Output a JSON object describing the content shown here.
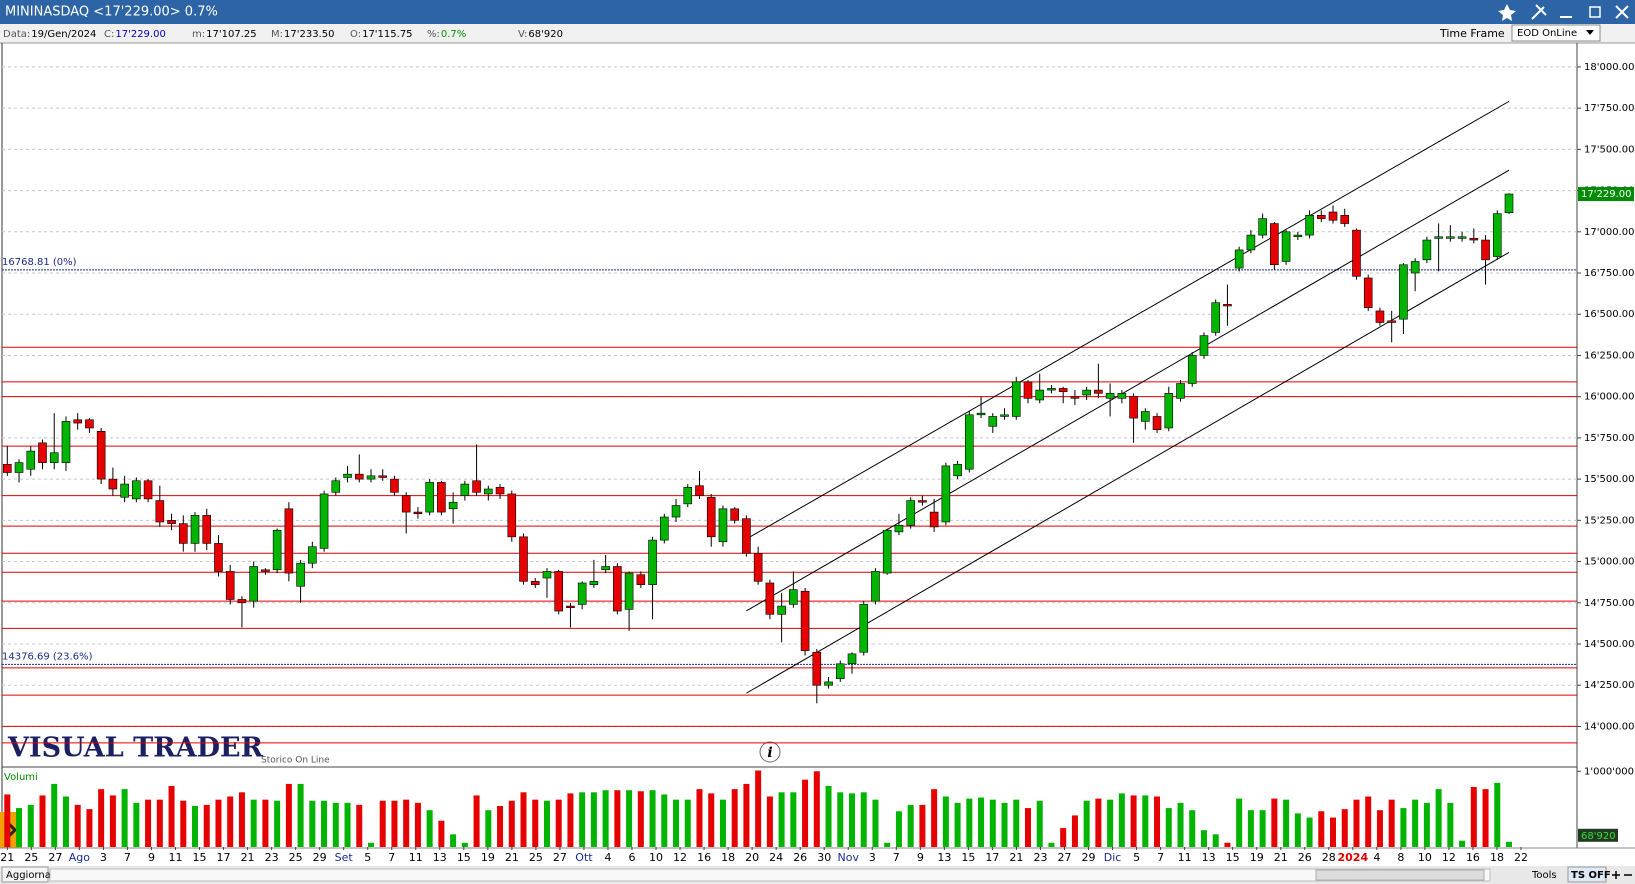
{
  "window": {
    "title": "MININASDAQ <17'229.00> 0.7%"
  },
  "info_bar": {
    "fields": [
      {
        "label": "Data:",
        "value": "19/Gen/2024"
      },
      {
        "label": "C:",
        "value": "17'229.00"
      },
      {
        "label": "m:",
        "value": "17'107.25"
      },
      {
        "label": "M:",
        "value": "17'233.50"
      },
      {
        "label": "O:",
        "value": "17'115.75"
      },
      {
        "label": "%:",
        "value": "0.7%"
      },
      {
        "label": "V:",
        "value": "68'920"
      }
    ],
    "time_frame_label": "Time Frame",
    "time_frame_value": "EOD OnLine"
  },
  "chart_data": {
    "type": "candlestick",
    "candles": [
      {
        "o": 15590,
        "h": 15700,
        "l": 15520,
        "c": 15540,
        "v": 694000
      },
      {
        "o": 15540,
        "h": 15620,
        "l": 15480,
        "c": 15600,
        "v": 514000
      },
      {
        "o": 15560,
        "h": 15700,
        "l": 15520,
        "c": 15670,
        "v": 556000
      },
      {
        "o": 15720,
        "h": 15740,
        "l": 15560,
        "c": 15600,
        "v": 681000
      },
      {
        "o": 15600,
        "h": 15900,
        "l": 15560,
        "c": 15660,
        "v": 833000
      },
      {
        "o": 15600,
        "h": 15880,
        "l": 15550,
        "c": 15850,
        "v": 667000
      },
      {
        "o": 15860,
        "h": 15900,
        "l": 15800,
        "c": 15840,
        "v": 556000
      },
      {
        "o": 15860,
        "h": 15870,
        "l": 15780,
        "c": 15810,
        "v": 500000
      },
      {
        "o": 15790,
        "h": 15810,
        "l": 15470,
        "c": 15500,
        "v": 764000
      },
      {
        "o": 15500,
        "h": 15570,
        "l": 15400,
        "c": 15440,
        "v": 681000
      },
      {
        "o": 15390,
        "h": 15520,
        "l": 15360,
        "c": 15470,
        "v": 764000
      },
      {
        "o": 15380,
        "h": 15510,
        "l": 15360,
        "c": 15490,
        "v": 583000
      },
      {
        "o": 15490,
        "h": 15500,
        "l": 15360,
        "c": 15380,
        "v": 625000
      },
      {
        "o": 15370,
        "h": 15460,
        "l": 15210,
        "c": 15240,
        "v": 625000
      },
      {
        "o": 15250,
        "h": 15290,
        "l": 15190,
        "c": 15230,
        "v": 806000
      },
      {
        "o": 15230,
        "h": 15280,
        "l": 15060,
        "c": 15110,
        "v": 611000
      },
      {
        "o": 15110,
        "h": 15300,
        "l": 15060,
        "c": 15280,
        "v": 542000
      },
      {
        "o": 15280,
        "h": 15320,
        "l": 15070,
        "c": 15110,
        "v": 556000
      },
      {
        "o": 15110,
        "h": 15160,
        "l": 14910,
        "c": 14940,
        "v": 625000
      },
      {
        "o": 14940,
        "h": 14980,
        "l": 14740,
        "c": 14770,
        "v": 667000
      },
      {
        "o": 14770,
        "h": 14790,
        "l": 14600,
        "c": 14750,
        "v": 722000
      },
      {
        "o": 14760,
        "h": 15000,
        "l": 14720,
        "c": 14970,
        "v": 625000
      },
      {
        "o": 14950,
        "h": 14960,
        "l": 14920,
        "c": 14940,
        "v": 625000
      },
      {
        "o": 14950,
        "h": 15200,
        "l": 14930,
        "c": 15190,
        "v": 611000
      },
      {
        "o": 15320,
        "h": 15360,
        "l": 14880,
        "c": 14930,
        "v": 833000
      },
      {
        "o": 14850,
        "h": 15010,
        "l": 14750,
        "c": 14990,
        "v": 833000
      },
      {
        "o": 14990,
        "h": 15120,
        "l": 14960,
        "c": 15090,
        "v": 611000
      },
      {
        "o": 15080,
        "h": 15430,
        "l": 15060,
        "c": 15410,
        "v": 611000
      },
      {
        "o": 15420,
        "h": 15510,
        "l": 15400,
        "c": 15490,
        "v": 583000
      },
      {
        "o": 15510,
        "h": 15580,
        "l": 15480,
        "c": 15530,
        "v": 583000
      },
      {
        "o": 15530,
        "h": 15650,
        "l": 15480,
        "c": 15500,
        "v": 556000
      },
      {
        "o": 15500,
        "h": 15560,
        "l": 15480,
        "c": 15520,
        "v": 56000
      },
      {
        "o": 15520,
        "h": 15560,
        "l": 15490,
        "c": 15510,
        "v": 611000
      },
      {
        "o": 15500,
        "h": 15520,
        "l": 15400,
        "c": 15420,
        "v": 611000
      },
      {
        "o": 15400,
        "h": 15420,
        "l": 15170,
        "c": 15300,
        "v": 625000
      },
      {
        "o": 15300,
        "h": 15330,
        "l": 15260,
        "c": 15290,
        "v": 583000
      },
      {
        "o": 15300,
        "h": 15500,
        "l": 15280,
        "c": 15480,
        "v": 486000
      },
      {
        "o": 15480,
        "h": 15490,
        "l": 15280,
        "c": 15300,
        "v": 347000
      },
      {
        "o": 15320,
        "h": 15420,
        "l": 15230,
        "c": 15360,
        "v": 167000
      },
      {
        "o": 15400,
        "h": 15490,
        "l": 15370,
        "c": 15470,
        "v": 56000
      },
      {
        "o": 15490,
        "h": 15710,
        "l": 15400,
        "c": 15420,
        "v": 681000
      },
      {
        "o": 15410,
        "h": 15460,
        "l": 15370,
        "c": 15440,
        "v": 486000
      },
      {
        "o": 15450,
        "h": 15470,
        "l": 15380,
        "c": 15410,
        "v": 542000
      },
      {
        "o": 15410,
        "h": 15430,
        "l": 15120,
        "c": 15150,
        "v": 611000
      },
      {
        "o": 15150,
        "h": 15170,
        "l": 14860,
        "c": 14880,
        "v": 722000
      },
      {
        "o": 14880,
        "h": 14900,
        "l": 14840,
        "c": 14860,
        "v": 625000
      },
      {
        "o": 14900,
        "h": 14960,
        "l": 14780,
        "c": 14940,
        "v": 611000
      },
      {
        "o": 14940,
        "h": 14950,
        "l": 14680,
        "c": 14700,
        "v": 625000
      },
      {
        "o": 14730,
        "h": 14750,
        "l": 14600,
        "c": 14720,
        "v": 708000
      },
      {
        "o": 14740,
        "h": 14880,
        "l": 14710,
        "c": 14870,
        "v": 722000
      },
      {
        "o": 14860,
        "h": 15010,
        "l": 14840,
        "c": 14880,
        "v": 722000
      },
      {
        "o": 14950,
        "h": 15040,
        "l": 14930,
        "c": 14970,
        "v": 750000
      },
      {
        "o": 14970,
        "h": 14990,
        "l": 14680,
        "c": 14700,
        "v": 750000
      },
      {
        "o": 14710,
        "h": 14940,
        "l": 14580,
        "c": 14930,
        "v": 750000
      },
      {
        "o": 14920,
        "h": 14940,
        "l": 14840,
        "c": 14860,
        "v": 736000
      },
      {
        "o": 14860,
        "h": 15150,
        "l": 14650,
        "c": 15130,
        "v": 750000
      },
      {
        "o": 15130,
        "h": 15290,
        "l": 15110,
        "c": 15270,
        "v": 694000
      },
      {
        "o": 15270,
        "h": 15380,
        "l": 15240,
        "c": 15340,
        "v": 625000
      },
      {
        "o": 15350,
        "h": 15470,
        "l": 15330,
        "c": 15450,
        "v": 625000
      },
      {
        "o": 15460,
        "h": 15550,
        "l": 15380,
        "c": 15400,
        "v": 764000
      },
      {
        "o": 15390,
        "h": 15410,
        "l": 15090,
        "c": 15150,
        "v": 708000
      },
      {
        "o": 15120,
        "h": 15340,
        "l": 15090,
        "c": 15320,
        "v": 625000
      },
      {
        "o": 15320,
        "h": 15330,
        "l": 15230,
        "c": 15250,
        "v": 764000
      },
      {
        "o": 15260,
        "h": 15280,
        "l": 15030,
        "c": 15050,
        "v": 833000
      },
      {
        "o": 15050,
        "h": 15090,
        "l": 14860,
        "c": 14880,
        "v": 1010000
      },
      {
        "o": 14870,
        "h": 14890,
        "l": 14650,
        "c": 14680,
        "v": 667000
      },
      {
        "o": 14680,
        "h": 14810,
        "l": 14510,
        "c": 14730,
        "v": 722000
      },
      {
        "o": 14740,
        "h": 14940,
        "l": 14720,
        "c": 14830,
        "v": 722000
      },
      {
        "o": 14820,
        "h": 14840,
        "l": 14430,
        "c": 14460,
        "v": 889000
      },
      {
        "o": 14450,
        "h": 14470,
        "l": 14140,
        "c": 14250,
        "v": 1000000
      },
      {
        "o": 14250,
        "h": 14300,
        "l": 14230,
        "c": 14270,
        "v": 806000
      },
      {
        "o": 14290,
        "h": 14400,
        "l": 14270,
        "c": 14380,
        "v": 722000
      },
      {
        "o": 14380,
        "h": 14450,
        "l": 14320,
        "c": 14440,
        "v": 708000
      },
      {
        "o": 14450,
        "h": 14760,
        "l": 14430,
        "c": 14740,
        "v": 722000
      },
      {
        "o": 14760,
        "h": 14960,
        "l": 14740,
        "c": 14940,
        "v": 625000
      },
      {
        "o": 14930,
        "h": 15200,
        "l": 14920,
        "c": 15190,
        "v": 56000
      },
      {
        "o": 15180,
        "h": 15290,
        "l": 15160,
        "c": 15220,
        "v": 472000
      },
      {
        "o": 15220,
        "h": 15390,
        "l": 15200,
        "c": 15370,
        "v": 556000
      },
      {
        "o": 15370,
        "h": 15400,
        "l": 15340,
        "c": 15360,
        "v": 556000
      },
      {
        "o": 15300,
        "h": 15380,
        "l": 15180,
        "c": 15210,
        "v": 764000
      },
      {
        "o": 15240,
        "h": 15600,
        "l": 15220,
        "c": 15580,
        "v": 667000
      },
      {
        "o": 15520,
        "h": 15610,
        "l": 15500,
        "c": 15590,
        "v": 583000
      },
      {
        "o": 15560,
        "h": 15910,
        "l": 15540,
        "c": 15890,
        "v": 639000
      },
      {
        "o": 15890,
        "h": 16000,
        "l": 15870,
        "c": 15900,
        "v": 653000
      },
      {
        "o": 15820,
        "h": 15900,
        "l": 15780,
        "c": 15880,
        "v": 625000
      },
      {
        "o": 15880,
        "h": 15930,
        "l": 15860,
        "c": 15890,
        "v": 583000
      },
      {
        "o": 15880,
        "h": 16120,
        "l": 15860,
        "c": 16090,
        "v": 625000
      },
      {
        "o": 16090,
        "h": 16100,
        "l": 15960,
        "c": 15990,
        "v": 514000
      },
      {
        "o": 15980,
        "h": 16140,
        "l": 15960,
        "c": 16040,
        "v": 611000
      },
      {
        "o": 16040,
        "h": 16070,
        "l": 16020,
        "c": 16050,
        "v": 56000
      },
      {
        "o": 16050,
        "h": 16060,
        "l": 15960,
        "c": 16030,
        "v": 250000
      },
      {
        "o": 16000,
        "h": 16040,
        "l": 15950,
        "c": 15990,
        "v": 417000
      },
      {
        "o": 16010,
        "h": 16060,
        "l": 15980,
        "c": 16040,
        "v": 611000
      },
      {
        "o": 16040,
        "h": 16200,
        "l": 15990,
        "c": 16020,
        "v": 639000
      },
      {
        "o": 15990,
        "h": 16080,
        "l": 15880,
        "c": 16020,
        "v": 625000
      },
      {
        "o": 15990,
        "h": 16040,
        "l": 15960,
        "c": 16020,
        "v": 708000
      },
      {
        "o": 16000,
        "h": 16020,
        "l": 15720,
        "c": 15870,
        "v": 681000
      },
      {
        "o": 15850,
        "h": 15930,
        "l": 15800,
        "c": 15910,
        "v": 681000
      },
      {
        "o": 15880,
        "h": 15900,
        "l": 15780,
        "c": 15800,
        "v": 667000
      },
      {
        "o": 15810,
        "h": 16060,
        "l": 15790,
        "c": 16020,
        "v": 514000
      },
      {
        "o": 15990,
        "h": 16100,
        "l": 15970,
        "c": 16080,
        "v": 583000
      },
      {
        "o": 16080,
        "h": 16270,
        "l": 16060,
        "c": 16250,
        "v": 486000
      },
      {
        "o": 16250,
        "h": 16390,
        "l": 16230,
        "c": 16370,
        "v": 222000
      },
      {
        "o": 16390,
        "h": 16590,
        "l": 16370,
        "c": 16570,
        "v": 167000
      },
      {
        "o": 16560,
        "h": 16680,
        "l": 16430,
        "c": 16550,
        "v": 56000
      },
      {
        "o": 16780,
        "h": 16910,
        "l": 16760,
        "c": 16890,
        "v": 639000
      },
      {
        "o": 16890,
        "h": 17010,
        "l": 16870,
        "c": 16980,
        "v": 486000
      },
      {
        "o": 16980,
        "h": 17110,
        "l": 16960,
        "c": 17080,
        "v": 486000
      },
      {
        "o": 17050,
        "h": 17060,
        "l": 16770,
        "c": 16800,
        "v": 639000
      },
      {
        "o": 16820,
        "h": 17010,
        "l": 16800,
        "c": 17000,
        "v": 625000
      },
      {
        "o": 16970,
        "h": 17000,
        "l": 16950,
        "c": 16980,
        "v": 444000
      },
      {
        "o": 16980,
        "h": 17130,
        "l": 16960,
        "c": 17100,
        "v": 389000
      },
      {
        "o": 17100,
        "h": 17130,
        "l": 17060,
        "c": 17080,
        "v": 472000
      },
      {
        "o": 17120,
        "h": 17160,
        "l": 17050,
        "c": 17070,
        "v": 389000
      },
      {
        "o": 17100,
        "h": 17140,
        "l": 17030,
        "c": 17050,
        "v": 500000
      },
      {
        "o": 17010,
        "h": 17020,
        "l": 16710,
        "c": 16730,
        "v": 625000
      },
      {
        "o": 16720,
        "h": 16740,
        "l": 16520,
        "c": 16540,
        "v": 667000
      },
      {
        "o": 16520,
        "h": 16540,
        "l": 16430,
        "c": 16450,
        "v": 486000
      },
      {
        "o": 16460,
        "h": 16520,
        "l": 16330,
        "c": 16450,
        "v": 625000
      },
      {
        "o": 16470,
        "h": 16810,
        "l": 16380,
        "c": 16800,
        "v": 514000
      },
      {
        "o": 16750,
        "h": 16840,
        "l": 16640,
        "c": 16820,
        "v": 625000
      },
      {
        "o": 16830,
        "h": 16970,
        "l": 16810,
        "c": 16950,
        "v": 583000
      },
      {
        "o": 16960,
        "h": 17050,
        "l": 16760,
        "c": 16970,
        "v": 764000
      },
      {
        "o": 16960,
        "h": 17040,
        "l": 16940,
        "c": 16970,
        "v": 583000
      },
      {
        "o": 16960,
        "h": 17000,
        "l": 16940,
        "c": 16970,
        "v": 83000
      },
      {
        "o": 16960,
        "h": 17020,
        "l": 16930,
        "c": 16950,
        "v": 792000
      },
      {
        "o": 16950,
        "h": 16980,
        "l": 16680,
        "c": 16830,
        "v": 764000
      },
      {
        "o": 16850,
        "h": 17130,
        "l": 16830,
        "c": 17110,
        "v": 847000
      },
      {
        "o": 17115.75,
        "h": 17233.5,
        "l": 17107.25,
        "c": 17229,
        "v": 68920
      }
    ],
    "ylim": [
      13760,
      18139
    ],
    "yticks": [
      {
        "value": 14000,
        "label": "14'000.00"
      },
      {
        "value": 14250,
        "label": "14'250.00"
      },
      {
        "value": 14500,
        "label": "14'500.00"
      },
      {
        "value": 14750,
        "label": "14'750.00"
      },
      {
        "value": 15000,
        "label": "15'000.00"
      },
      {
        "value": 15250,
        "label": "15'250.00"
      },
      {
        "value": 15500,
        "label": "15'500.00"
      },
      {
        "value": 15750,
        "label": "15'750.00"
      },
      {
        "value": 16000,
        "label": "16'000.00"
      },
      {
        "value": 16250,
        "label": "16'250.00"
      },
      {
        "value": 16500,
        "label": "16'500.00"
      },
      {
        "value": 16750,
        "label": "16'750.00"
      },
      {
        "value": 17000,
        "label": "17'000.00"
      },
      {
        "value": 17250,
        "label": "17'250.00"
      },
      {
        "value": 17500,
        "label": "17'500.00"
      },
      {
        "value": 17750,
        "label": "17'750.00"
      },
      {
        "value": 18000,
        "label": "18'000.00"
      }
    ],
    "last_price_label": "17'229.00",
    "levels": [
      16300,
      16090,
      16000,
      15700,
      15400,
      15215,
      15050,
      14935,
      14760,
      14595,
      14355,
      14190,
      14000,
      13900
    ],
    "fib_levels": [
      {
        "value": 16768.81,
        "label": "16768.81 (0%)"
      },
      {
        "value": 14376.69,
        "label": "14376.69 (23.6%)"
      }
    ],
    "channel": [
      {
        "start": [
          63,
          15137
        ],
        "end": [
          128,
          17791
        ]
      },
      {
        "start": [
          63,
          14701
        ],
        "end": [
          128,
          17374
        ]
      },
      {
        "start": [
          63,
          14202
        ],
        "end": [
          128,
          16875
        ]
      }
    ],
    "x_labels": [
      "21",
      "25",
      "27",
      "Ago",
      "3",
      "7",
      "9",
      "11",
      "15",
      "17",
      "21",
      "23",
      "25",
      "29",
      "Set",
      "5",
      "7",
      "11",
      "13",
      "15",
      "19",
      "21",
      "25",
      "27",
      "Ott",
      "4",
      "6",
      "10",
      "12",
      "16",
      "18",
      "20",
      "24",
      "26",
      "30",
      "Nov",
      "3",
      "7",
      "9",
      "13",
      "15",
      "17",
      "21",
      "23",
      "27",
      "29",
      "Dic",
      "5",
      "7",
      "11",
      "13",
      "15",
      "19",
      "21",
      "26",
      "28",
      "2024",
      "4",
      "8",
      "10",
      "12",
      "16",
      "18",
      "22"
    ],
    "colors": {
      "up": "#00b400",
      "down": "#e60000",
      "level": "#e00000",
      "fib": "#1a2a8a",
      "channel": "#000000",
      "grid": "#c8c8c8"
    },
    "grid": true,
    "volume": {
      "title": "Volumi",
      "ylim": [
        0,
        1030000
      ],
      "yticks": [
        {
          "value": 1000000,
          "label": "1'000'000"
        }
      ],
      "last_label": "68'920"
    }
  },
  "branding": {
    "logo": "VISUAL TRADER",
    "tagline": "Storico On Line"
  },
  "status_bar": {
    "refresh": "Aggiorna",
    "tools": "Tools",
    "ts": "TS OFF"
  }
}
